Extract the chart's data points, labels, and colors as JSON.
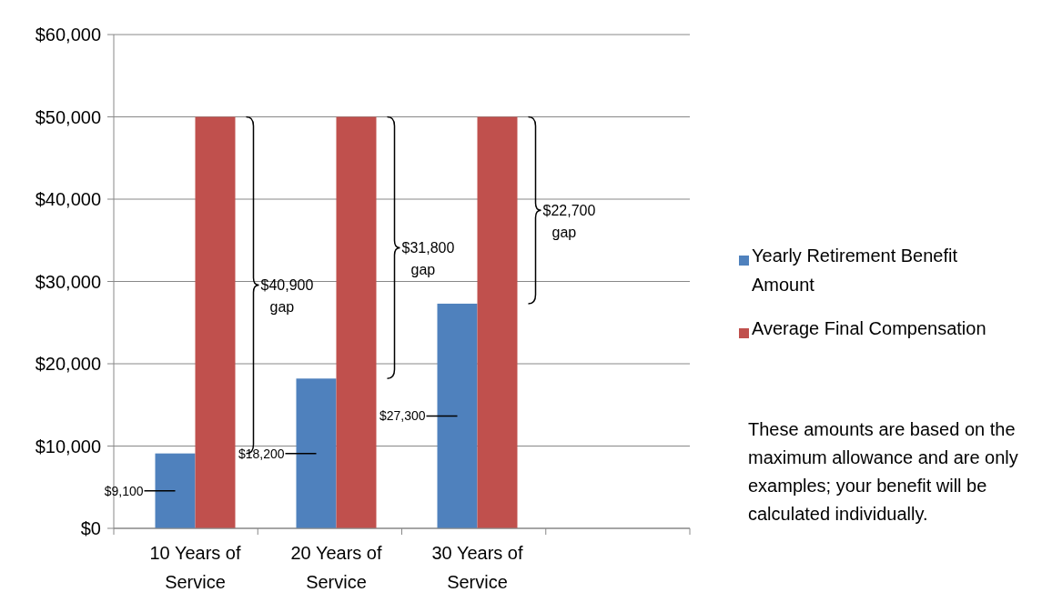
{
  "chart_data": {
    "type": "bar",
    "categories": [
      "10 Years of Service",
      "20 Years of Service",
      "30 Years of Service",
      null
    ],
    "series": [
      {
        "name": "Yearly Retirement Benefit Amount",
        "color": "#4f81bd",
        "values": [
          9100,
          18200,
          27300,
          null
        ],
        "value_labels": [
          "$9,100",
          "$18,200",
          "$27,300",
          null
        ]
      },
      {
        "name": "Average Final Compensation",
        "color": "#c0504d",
        "values": [
          50000,
          50000,
          50000,
          null
        ]
      }
    ],
    "ylim": [
      0,
      60000
    ],
    "yticks": [
      {
        "value": 0,
        "label": "$0"
      },
      {
        "value": 10000,
        "label": "$10,000"
      },
      {
        "value": 20000,
        "label": "$20,000"
      },
      {
        "value": 30000,
        "label": "$30,000"
      },
      {
        "value": 40000,
        "label": "$40,000"
      },
      {
        "value": 50000,
        "label": "$50,000"
      },
      {
        "value": 60000,
        "label": "$60,000"
      }
    ],
    "grid": "y",
    "legend": "right",
    "annotations": [
      "$40,900 gap",
      "$31,800 gap",
      "$22,700 gap",
      "These amounts are based on the maximum allowance and are only examples; your benefit will be calculated individually."
    ]
  }
}
